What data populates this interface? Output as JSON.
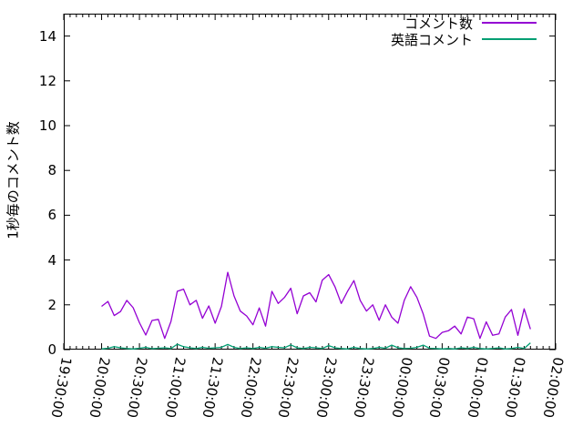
{
  "chart_data": {
    "type": "line",
    "title": "",
    "xlabel": "",
    "ylabel": "1秒毎のコメント数",
    "ylim": [
      0,
      15
    ],
    "grid": false,
    "legend_position": "top-right",
    "ytick_values": [
      0,
      2,
      4,
      6,
      8,
      10,
      12,
      14
    ],
    "xtick_labels": [
      "19:30:00",
      "20:00:00",
      "20:30:00",
      "21:00:00",
      "21:30:00",
      "22:00:00",
      "22:30:00",
      "23:00:00",
      "23:30:00",
      "00:00:00",
      "00:30:00",
      "01:00:00",
      "01:30:00",
      "02:00:00"
    ],
    "x_minor_tick_minutes": 5,
    "x_major_tick_minutes": 30,
    "series": [
      {
        "name": "コメント数",
        "color": "#9400d3",
        "start_time": "20:00:00",
        "end_time": "01:40:00",
        "interval_minutes": 5,
        "values": [
          1.93,
          2.15,
          1.52,
          1.7,
          2.2,
          1.87,
          1.2,
          0.65,
          1.3,
          1.35,
          0.5,
          1.26,
          2.6,
          2.7,
          2.0,
          2.2,
          1.4,
          1.95,
          1.18,
          1.93,
          3.45,
          2.4,
          1.72,
          1.5,
          1.11,
          1.86,
          1.05,
          2.6,
          2.06,
          2.33,
          2.74,
          1.6,
          2.4,
          2.54,
          2.13,
          3.1,
          3.35,
          2.81,
          2.06,
          2.6,
          3.08,
          2.2,
          1.72,
          2.0,
          1.31,
          2.0,
          1.45,
          1.18,
          2.2,
          2.81,
          2.33,
          1.59,
          0.6,
          0.5,
          0.77,
          0.84,
          1.05,
          0.7,
          1.45,
          1.38,
          0.5,
          1.24,
          0.64,
          0.7,
          1.45,
          1.79,
          0.64,
          1.82,
          0.91
        ]
      },
      {
        "name": "英語コメント",
        "color": "#009e73",
        "start_time": "20:00:00",
        "end_time": "01:40:00",
        "interval_minutes": 5,
        "values": [
          0.03,
          0.06,
          0.13,
          0.08,
          0.05,
          0.03,
          0.06,
          0.1,
          0.04,
          0.06,
          0.08,
          0.05,
          0.24,
          0.13,
          0.08,
          0.05,
          0.1,
          0.06,
          0.08,
          0.1,
          0.23,
          0.1,
          0.05,
          0.08,
          0.05,
          0.1,
          0.06,
          0.13,
          0.1,
          0.08,
          0.21,
          0.08,
          0.05,
          0.1,
          0.08,
          0.05,
          0.18,
          0.08,
          0.05,
          0.03,
          0.1,
          0.05,
          0.03,
          0.05,
          0.1,
          0.06,
          0.2,
          0.08,
          0.05,
          0.06,
          0.1,
          0.2,
          0.06,
          0.05,
          0.03,
          0.05,
          0.03,
          0.08,
          0.05,
          0.1,
          0.05,
          0.03,
          0.05,
          0.08,
          0.03,
          0.05,
          0.1,
          0.05,
          0.3
        ]
      }
    ]
  },
  "legend": {
    "items": [
      {
        "label": "コメント数",
        "color": "#9400d3"
      },
      {
        "label": "英語コメント",
        "color": "#009e73"
      }
    ]
  },
  "colors": {
    "frame": "#000000",
    "background": "#ffffff",
    "series1": "#9400d3",
    "series2": "#009e73"
  }
}
